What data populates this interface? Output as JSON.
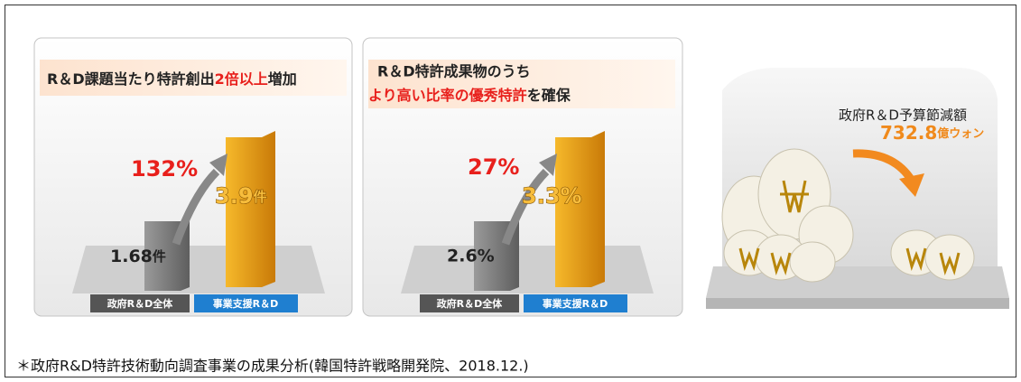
{
  "panels": [
    {
      "title": {
        "before": "R＆D課題当たり特許創出",
        "highlight": "2倍以上",
        "after": "増加"
      },
      "growth": "132%",
      "bars": [
        {
          "label": "政府R＆D全体",
          "value": "1.68",
          "unit": "件"
        },
        {
          "label": "事業支援R＆D",
          "value": "3.9",
          "unit": "件"
        }
      ]
    },
    {
      "title": {
        "line1": "R＆D特許成果物のうち",
        "highlight": "より高い比率の優秀特許",
        "after": "を確保"
      },
      "growth": "27%",
      "bars": [
        {
          "label": "政府R＆D全体",
          "value": "2.6%"
        },
        {
          "label": "事業支援R＆D",
          "value": "3.3%"
        }
      ]
    }
  ],
  "savings": {
    "label": "政府R＆D予算節減額",
    "amount": "732.8",
    "unit": "億ウォン"
  },
  "caption": "＊政府R&D特許技術動向調査事業の成果分析(韓国特許戦略開発院、2018.12.)"
}
